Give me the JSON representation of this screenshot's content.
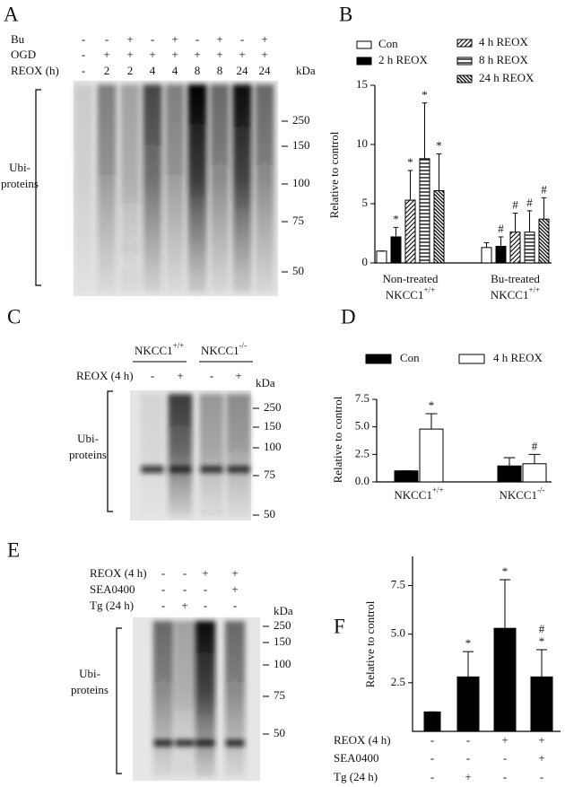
{
  "blots": [
    {
      "letter": "A",
      "rows": [
        {
          "label": "Bu",
          "signs": [
            "-",
            "-",
            "+",
            "-",
            "+",
            "-",
            "+",
            "-",
            "+"
          ]
        },
        {
          "label": "OGD",
          "signs": [
            "-",
            "+",
            "+",
            "+",
            "+",
            "+",
            "+",
            "+",
            "+"
          ]
        },
        {
          "label": "REOX (h)",
          "signs": [
            "-",
            "2",
            "2",
            "4",
            "4",
            "8",
            "8",
            "24",
            "24"
          ]
        }
      ],
      "unit": "kDa",
      "markers": [
        250,
        150,
        100,
        75,
        50
      ],
      "ylabel": [
        "Ubi-",
        "proteins"
      ]
    },
    {
      "letter": "C",
      "groups": [
        {
          "text": "NKCC1",
          "sup": "+/+"
        },
        {
          "text": "NKCC1",
          "sup": "-/-"
        }
      ],
      "rows": [
        {
          "label": "REOX (4 h)",
          "signs": [
            "-",
            "+",
            "-",
            "+"
          ]
        }
      ],
      "unit": "kDa",
      "markers": [
        250,
        150,
        100,
        75,
        50
      ],
      "ylabel": [
        "Ubi-",
        "proteins"
      ]
    },
    {
      "letter": "E",
      "rows": [
        {
          "label": "REOX (4 h)",
          "signs": [
            "-",
            "-",
            "+",
            "+"
          ]
        },
        {
          "label": "SEA0400",
          "signs": [
            "-",
            "-",
            "-",
            "+"
          ]
        },
        {
          "label": "Tg (24 h)",
          "signs": [
            "-",
            "+",
            "-",
            "-"
          ]
        }
      ],
      "unit": "kDa",
      "markers": [
        250,
        150,
        100,
        75,
        50
      ],
      "ylabel": [
        "Ubi-",
        "proteins"
      ]
    }
  ],
  "chart_data": [
    {
      "letter": "B",
      "type": "bar",
      "ylabel": "Relative to control",
      "ylim": [
        0,
        15
      ],
      "yticks": [
        0,
        5,
        10,
        15
      ],
      "categories": [
        "Non-treated",
        "Bu-treated"
      ],
      "category_genotypes": [
        {
          "text": "NKCC1",
          "sup": "+/+"
        },
        {
          "text": "NKCC1",
          "sup": "+/+"
        }
      ],
      "series": [
        {
          "name": "Con",
          "color": "#000000",
          "pattern": "open",
          "values": [
            1,
            1.3
          ],
          "errors": [
            0,
            0.4
          ],
          "significance": [
            null,
            null
          ]
        },
        {
          "name": "2 h REOX",
          "color": "#000000",
          "pattern": "solid",
          "values": [
            2.2,
            1.4
          ],
          "errors": [
            0.8,
            0.8
          ],
          "significance": [
            "*",
            "#"
          ]
        },
        {
          "name": "4 h REOX",
          "color": "#000000",
          "pattern": "forward-diagonal",
          "values": [
            5.3,
            2.6
          ],
          "errors": [
            2.5,
            1.6
          ],
          "significance": [
            "*",
            "#"
          ]
        },
        {
          "name": "8 h REOX",
          "color": "#000000",
          "pattern": "horizontal",
          "values": [
            8.8,
            2.6
          ],
          "errors": [
            4.7,
            1.8
          ],
          "significance": [
            "*",
            "#"
          ]
        },
        {
          "name": "24 h REOX",
          "color": "#000000",
          "pattern": "back-diagonal",
          "values": [
            6.1,
            3.7
          ],
          "errors": [
            3.1,
            1.8
          ],
          "significance": [
            "*",
            "#"
          ]
        }
      ]
    },
    {
      "letter": "D",
      "type": "bar",
      "ylabel": "Relative to control",
      "ylim": [
        0,
        7.5
      ],
      "yticks": [
        {
          "value": 0,
          "label": "0.0"
        },
        {
          "value": 2.5,
          "label": "2.5"
        },
        {
          "value": 5,
          "label": "5.0"
        },
        {
          "value": 7.5,
          "label": "7.5"
        }
      ],
      "category_genotypes": [
        {
          "text": "NKCC1",
          "sup": "+/+"
        },
        {
          "text": "NKCC1",
          "sup": "-/-"
        }
      ],
      "series": [
        {
          "name": "Con",
          "color": "#000000",
          "pattern": "solid",
          "values": [
            1,
            1.45
          ],
          "errors": [
            0,
            0.75
          ],
          "significance": [
            null,
            null
          ]
        },
        {
          "name": "4 h REOX",
          "color": "#000000",
          "pattern": "open",
          "values": [
            4.8,
            1.65
          ],
          "errors": [
            1.4,
            0.85
          ],
          "significance": [
            "*",
            "#"
          ]
        }
      ]
    },
    {
      "letter": "F",
      "type": "bar",
      "ylabel": "Relative to control",
      "ylim": [
        0,
        9
      ],
      "yticks": [
        {
          "value": 2.5,
          "label": "2.5"
        },
        {
          "value": 5,
          "label": "5.0"
        },
        {
          "value": 7.5,
          "label": "7.5"
        }
      ],
      "color": "#000000",
      "values": [
        1,
        2.8,
        5.3,
        2.8
      ],
      "errors": [
        0,
        1.3,
        2.5,
        1.4
      ],
      "significance": [
        null,
        [
          "*"
        ],
        [
          "*"
        ],
        [
          "#",
          "*"
        ]
      ],
      "rows": [
        {
          "label": "REOX (4 h)",
          "signs": [
            "-",
            "-",
            "+",
            "+"
          ]
        },
        {
          "label": "SEA0400",
          "signs": [
            "-",
            "-",
            "-",
            "+"
          ]
        },
        {
          "label": "Tg (24 h)",
          "signs": [
            "-",
            "+",
            "-",
            "-"
          ]
        }
      ]
    }
  ]
}
